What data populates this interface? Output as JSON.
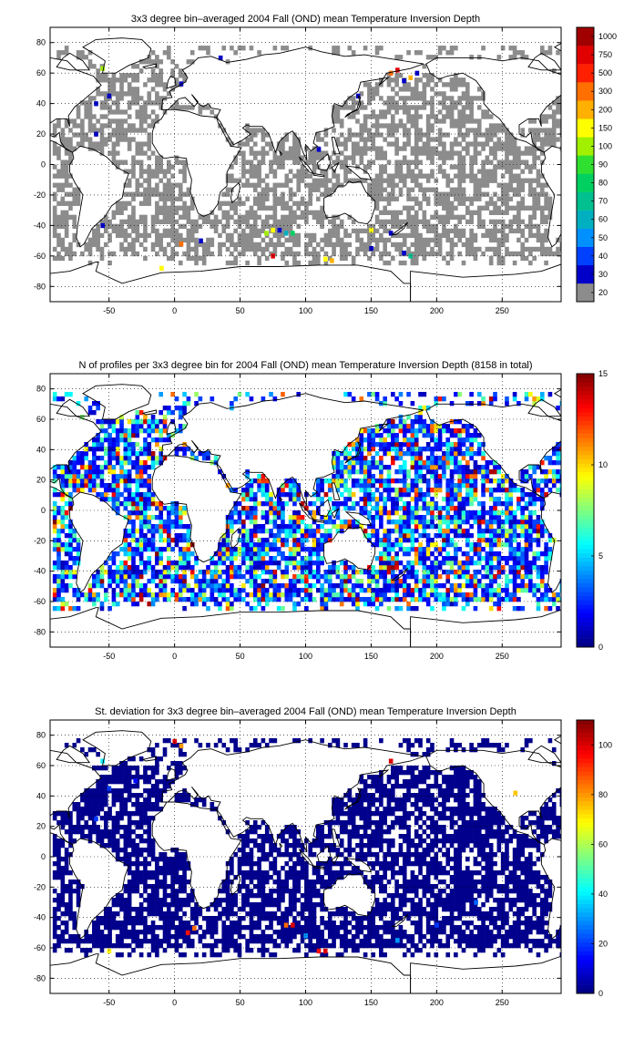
{
  "chart_data": [
    {
      "type": "heatmap",
      "title": "3x3 degree bin–averaged 2004 Fall (OND) mean Temperature Inversion Depth",
      "xlim": [
        -95,
        295
      ],
      "ylim": [
        -90,
        90
      ],
      "xticks": [
        -50,
        0,
        50,
        100,
        150,
        200,
        250
      ],
      "yticks": [
        -80,
        -60,
        -40,
        -20,
        0,
        20,
        40,
        60,
        80
      ],
      "grid": true,
      "colorbar": {
        "kind": "discrete",
        "labels": [
          "20",
          "30",
          "40",
          "50",
          "60",
          "70",
          "80",
          "90",
          "100",
          "150",
          "200",
          "300",
          "500",
          "750",
          "1000"
        ],
        "colors": [
          "#8c8c8c",
          "#0000c8",
          "#0040ff",
          "#0090ff",
          "#00b0c0",
          "#00c090",
          "#00d060",
          "#30e030",
          "#a0f000",
          "#ffff00",
          "#ffb000",
          "#ff7000",
          "#ff2000",
          "#e00000",
          "#a00000"
        ]
      },
      "bin_deg": 3,
      "fill_color": "#8c8c8c",
      "density": 0.62,
      "highlights": [
        {
          "lon": -55,
          "lat": 63,
          "value": 100
        },
        {
          "lon": -50,
          "lat": 45,
          "value": 30
        },
        {
          "lon": -60,
          "lat": 40,
          "value": 30
        },
        {
          "lon": 5,
          "lat": 53,
          "value": 30
        },
        {
          "lon": 35,
          "lat": 70,
          "value": 30
        },
        {
          "lon": 165,
          "lat": 60,
          "value": 300
        },
        {
          "lon": 170,
          "lat": 62,
          "value": 750
        },
        {
          "lon": 180,
          "lat": 57,
          "value": 200
        },
        {
          "lon": 175,
          "lat": 55,
          "value": 30
        },
        {
          "lon": 185,
          "lat": 60,
          "value": 30
        },
        {
          "lon": 140,
          "lat": 45,
          "value": 30
        },
        {
          "lon": 110,
          "lat": 10,
          "value": 30
        },
        {
          "lon": -60,
          "lat": 20,
          "value": 30
        },
        {
          "lon": -55,
          "lat": -40,
          "value": 30
        },
        {
          "lon": 5,
          "lat": -52,
          "value": 300
        },
        {
          "lon": 20,
          "lat": -50,
          "value": 30
        },
        {
          "lon": 70,
          "lat": -45,
          "value": 100
        },
        {
          "lon": 75,
          "lat": -43,
          "value": 150
        },
        {
          "lon": 80,
          "lat": -43,
          "value": 30
        },
        {
          "lon": 85,
          "lat": -45,
          "value": 60
        },
        {
          "lon": 90,
          "lat": -45,
          "value": 80
        },
        {
          "lon": 75,
          "lat": -60,
          "value": 750
        },
        {
          "lon": 115,
          "lat": -62,
          "value": 150
        },
        {
          "lon": 120,
          "lat": -63,
          "value": 200
        },
        {
          "lon": 150,
          "lat": -43,
          "value": 150
        },
        {
          "lon": 165,
          "lat": -45,
          "value": 30
        },
        {
          "lon": 175,
          "lat": -58,
          "value": 30
        },
        {
          "lon": 180,
          "lat": -60,
          "value": 70
        },
        {
          "lon": -10,
          "lat": -68,
          "value": 150
        },
        {
          "lon": 150,
          "lat": -55,
          "value": 30
        }
      ]
    },
    {
      "type": "heatmap",
      "title": "N of profiles per 3x3 degree bin for 2004 Fall (OND) mean Temperature Inversion Depth  (8158 in total)",
      "xlim": [
        -95,
        295
      ],
      "ylim": [
        -90,
        90
      ],
      "xticks": [
        -50,
        0,
        50,
        100,
        150,
        200,
        250
      ],
      "yticks": [
        -80,
        -60,
        -40,
        -20,
        0,
        20,
        40,
        60,
        80
      ],
      "grid": true,
      "colorbar": {
        "kind": "continuous",
        "min": 0,
        "max": 15,
        "ticks": [
          0,
          5,
          10,
          15
        ]
      },
      "bin_deg": 3,
      "density": 0.75,
      "value_weights": {
        "0.8-3": 0.5,
        "3-7": 0.3,
        "7-11": 0.12,
        "11-15": 0.08
      }
    },
    {
      "type": "heatmap",
      "title": "St. deviation for 3x3 degree bin–averaged 2004 Fall (OND) mean Temperature Inversion Depth",
      "xlim": [
        -95,
        295
      ],
      "ylim": [
        -90,
        90
      ],
      "xticks": [
        -50,
        0,
        50,
        100,
        150,
        200,
        250
      ],
      "yticks": [
        -80,
        -60,
        -40,
        -20,
        0,
        20,
        40,
        60,
        80
      ],
      "grid": true,
      "colorbar": {
        "kind": "continuous",
        "min": 0,
        "max": 110,
        "ticks": [
          0,
          20,
          40,
          60,
          80,
          100
        ]
      },
      "bin_deg": 3,
      "fill_color": "#00008c",
      "density": 0.72,
      "highlights": [
        {
          "lon": -55,
          "lat": 63,
          "value": 40
        },
        {
          "lon": -50,
          "lat": 45,
          "value": 20
        },
        {
          "lon": -30,
          "lat": 50,
          "value": 15
        },
        {
          "lon": 0,
          "lat": 76,
          "value": 100
        },
        {
          "lon": 5,
          "lat": 73,
          "value": 80
        },
        {
          "lon": 165,
          "lat": 63,
          "value": 100
        },
        {
          "lon": 260,
          "lat": 42,
          "value": 75
        },
        {
          "lon": 10,
          "lat": -50,
          "value": 95
        },
        {
          "lon": 15,
          "lat": -47,
          "value": 85
        },
        {
          "lon": 85,
          "lat": -45,
          "value": 85
        },
        {
          "lon": 90,
          "lat": -45,
          "value": 100
        },
        {
          "lon": 100,
          "lat": -52,
          "value": 30
        },
        {
          "lon": 110,
          "lat": -62,
          "value": 95
        },
        {
          "lon": 115,
          "lat": -62,
          "value": 100
        },
        {
          "lon": 170,
          "lat": -55,
          "value": 30
        },
        {
          "lon": -50,
          "lat": -62,
          "value": 70
        },
        {
          "lon": -60,
          "lat": 25,
          "value": 20
        },
        {
          "lon": 200,
          "lat": -45,
          "value": 20
        },
        {
          "lon": 230,
          "lat": -30,
          "value": 25
        }
      ]
    }
  ]
}
